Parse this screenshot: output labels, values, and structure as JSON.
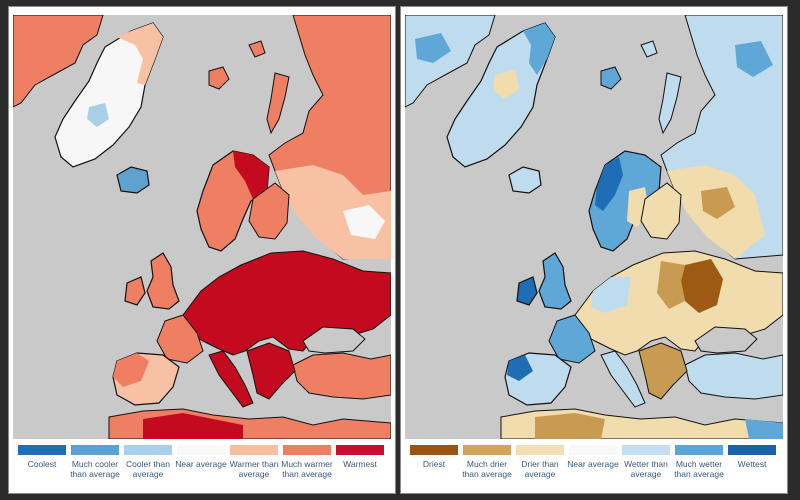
{
  "temperature_panel": {
    "colors": {
      "sea": "#c9c9c9",
      "coolest": "#2a78bd",
      "much_cooler": "#5ea3d0",
      "cooler": "#a9cfe6",
      "near": "#f7f7f7",
      "warmer": "#f9c1a4",
      "much_warmer": "#ef7f62",
      "warmest": "#c40a1f"
    },
    "legend": [
      {
        "label": "Coolest",
        "color": "#1f6fb8"
      },
      {
        "label": "Much cooler than average",
        "color": "#5aa2d4"
      },
      {
        "label": "Cooler than average",
        "color": "#a8d0ea"
      },
      {
        "label": "Near average",
        "color": "#f8f8f8"
      },
      {
        "label": "Warmer than average",
        "color": "#f7bf9d"
      },
      {
        "label": "Much warmer than average",
        "color": "#ee7d61"
      },
      {
        "label": "Warmest",
        "color": "#c8102e"
      }
    ]
  },
  "precipitation_panel": {
    "colors": {
      "sea": "#c9c9c9",
      "driest": "#9c5a12",
      "much_drier": "#c99a52",
      "drier": "#f1dcae",
      "near": "#f7f7f7",
      "wetter": "#bfdcee",
      "much_wetter": "#5ea7d7",
      "wettest": "#1e6db5"
    },
    "legend": [
      {
        "label": "Driest",
        "color": "#9a5513"
      },
      {
        "label": "Much drier than average",
        "color": "#d2a35a"
      },
      {
        "label": "Drier than average",
        "color": "#f3dfb4"
      },
      {
        "label": "Near average",
        "color": "#f8f8f8"
      },
      {
        "label": "Wetter than average",
        "color": "#c2def0"
      },
      {
        "label": "Much wetter than average",
        "color": "#5ba6d8"
      },
      {
        "label": "Wettest",
        "color": "#1b62ad"
      }
    ]
  }
}
